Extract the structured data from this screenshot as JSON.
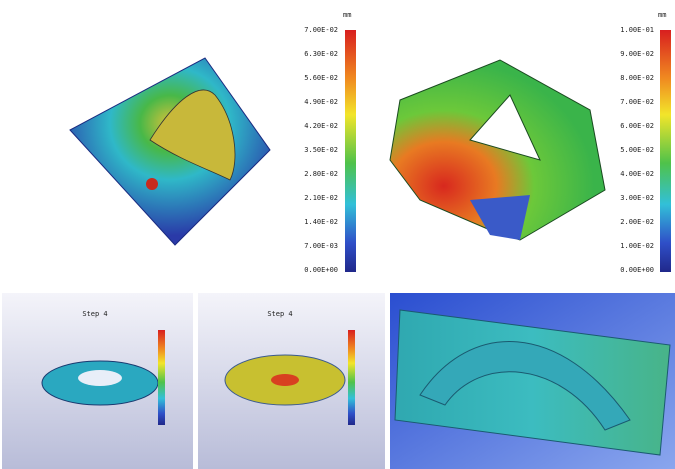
{
  "panels": [
    {
      "unit": "mm",
      "scale": [
        "7.00E-02",
        "6.30E-02",
        "5.60E-02",
        "4.90E-02",
        "4.20E-02",
        "3.50E-02",
        "2.80E-02",
        "2.10E-02",
        "1.40E-02",
        "7.00E-03",
        "0.00E+00"
      ]
    },
    {
      "unit": "mm",
      "scale": [
        "1.00E-01",
        "9.00E-02",
        "8.00E-02",
        "7.00E-02",
        "6.00E-02",
        "5.00E-02",
        "4.00E-02",
        "3.00E-02",
        "2.00E-02",
        "1.00E-02",
        "0.00E+00"
      ]
    }
  ],
  "bottom": [
    {
      "title": "Step 4"
    },
    {
      "title": "Step 4"
    }
  ]
}
